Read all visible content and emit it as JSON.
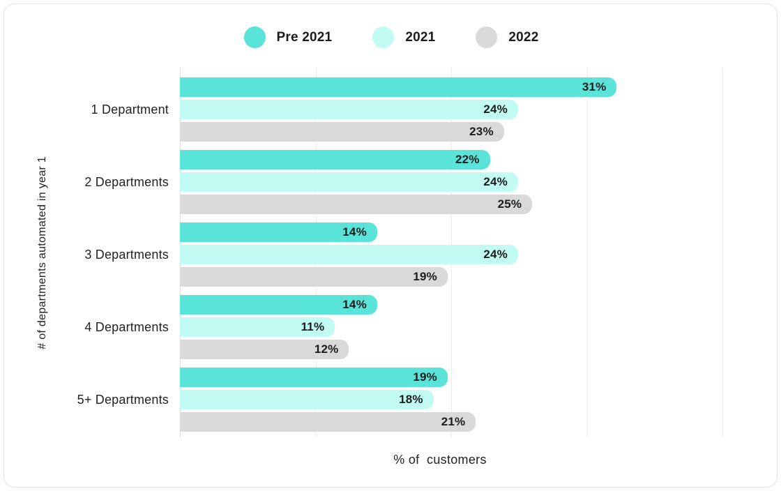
{
  "legend": {
    "items": [
      {
        "label": "Pre 2021",
        "color": "#5ae3d9"
      },
      {
        "label": "2021",
        "color": "#c2fbf4"
      },
      {
        "label": "2022",
        "color": "#d9d9d9"
      }
    ]
  },
  "chart_data": {
    "type": "bar",
    "orientation": "horizontal",
    "title": "",
    "xlabel": "% of  customers",
    "ylabel": "# of departments automated in year 1",
    "categories": [
      "1 Department",
      "2 Departments",
      "3 Departments",
      "4 Departments",
      "5+ Departments"
    ],
    "series": [
      {
        "name": "Pre 2021",
        "color": "#5ae3d9",
        "values": [
          31,
          22,
          14,
          14,
          19
        ]
      },
      {
        "name": "2021",
        "color": "#c2fbf4",
        "values": [
          24,
          24,
          24,
          11,
          18
        ]
      },
      {
        "name": "2022",
        "color": "#d9d9d9",
        "values": [
          23,
          25,
          19,
          12,
          21
        ]
      }
    ],
    "value_suffix": "%",
    "xlim": [
      0,
      38.5
    ],
    "gridlines_percent": [
      0,
      25,
      50,
      75,
      100
    ],
    "grid": true,
    "legend_position": "top",
    "value_labels": "inside-end"
  }
}
